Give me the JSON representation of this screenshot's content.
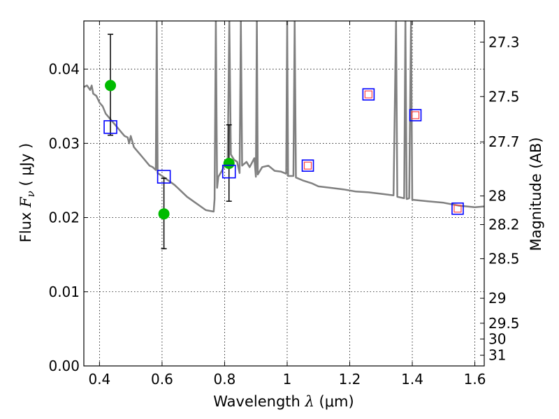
{
  "chart_data": {
    "type": "scatter",
    "xlabel": {
      "prefix": "Wavelength  ",
      "symbol": "λ",
      "units": " (μm)"
    },
    "ylabel": {
      "prefix": "Flux  ",
      "symbol": "F",
      "subscript": "ν",
      "units": "  ( μJy )"
    },
    "y2label": "Magnitude (AB)",
    "xlim": [
      0.35,
      1.63
    ],
    "ylim": [
      0.0,
      0.0465
    ],
    "grid": true,
    "x_ticks": [
      0.4,
      0.6,
      0.8,
      1.0,
      1.2,
      1.4,
      1.6
    ],
    "x_tick_labels": [
      "0.4",
      "0.6",
      "0.8",
      "1",
      "1.2",
      "1.4",
      "1.6"
    ],
    "y_ticks": [
      0.0,
      0.01,
      0.02,
      0.03,
      0.04
    ],
    "y_tick_labels": [
      "0.00",
      "0.01",
      "0.02",
      "0.03",
      "0.04"
    ],
    "y2_ticks": [
      {
        "label": "27.3",
        "value": 27.3
      },
      {
        "label": "27.5",
        "value": 27.5
      },
      {
        "label": "27.7",
        "value": 27.7
      },
      {
        "label": "28",
        "value": 28.0
      },
      {
        "label": "28.2",
        "value": 28.2
      },
      {
        "label": "28.5",
        "value": 28.5
      },
      {
        "label": "29",
        "value": 29.0
      },
      {
        "label": "29.5",
        "value": 29.5
      },
      {
        "label": "30",
        "value": 30.0
      },
      {
        "label": "31",
        "value": 31.0
      }
    ],
    "series": [
      {
        "kind": "model_sed_line",
        "color": "#808080",
        "points": [
          [
            0.35,
            0.0376
          ],
          [
            0.36,
            0.0378
          ],
          [
            0.37,
            0.0372
          ],
          [
            0.375,
            0.0378
          ],
          [
            0.38,
            0.0367
          ],
          [
            0.39,
            0.0364
          ],
          [
            0.4,
            0.0355
          ],
          [
            0.41,
            0.035
          ],
          [
            0.42,
            0.034
          ],
          [
            0.43,
            0.0335
          ],
          [
            0.44,
            0.033
          ],
          [
            0.45,
            0.0325
          ],
          [
            0.46,
            0.032
          ],
          [
            0.47,
            0.0315
          ],
          [
            0.48,
            0.031
          ],
          [
            0.49,
            0.0308
          ],
          [
            0.495,
            0.03
          ],
          [
            0.5,
            0.031
          ],
          [
            0.51,
            0.0295
          ],
          [
            0.52,
            0.029
          ],
          [
            0.53,
            0.0285
          ],
          [
            0.54,
            0.028
          ],
          [
            0.55,
            0.0275
          ],
          [
            0.56,
            0.027
          ],
          [
            0.57,
            0.0268
          ],
          [
            0.58,
            0.0264
          ],
          [
            0.583,
            0.0465
          ],
          [
            0.586,
            0.026
          ],
          [
            0.6,
            0.0256
          ],
          [
            0.62,
            0.025
          ],
          [
            0.64,
            0.0244
          ],
          [
            0.66,
            0.0236
          ],
          [
            0.68,
            0.0228
          ],
          [
            0.7,
            0.0222
          ],
          [
            0.72,
            0.0216
          ],
          [
            0.74,
            0.021
          ],
          [
            0.765,
            0.0208
          ],
          [
            0.768,
            0.0225
          ],
          [
            0.772,
            0.0465
          ],
          [
            0.776,
            0.024
          ],
          [
            0.78,
            0.0255
          ],
          [
            0.79,
            0.0262
          ],
          [
            0.8,
            0.027
          ],
          [
            0.81,
            0.028
          ],
          [
            0.815,
            0.0465
          ],
          [
            0.82,
            0.0285
          ],
          [
            0.83,
            0.0278
          ],
          [
            0.84,
            0.0275
          ],
          [
            0.848,
            0.026
          ],
          [
            0.852,
            0.0465
          ],
          [
            0.856,
            0.027
          ],
          [
            0.87,
            0.0275
          ],
          [
            0.88,
            0.0268
          ],
          [
            0.895,
            0.028
          ],
          [
            0.9,
            0.0255
          ],
          [
            0.903,
            0.0465
          ],
          [
            0.906,
            0.0258
          ],
          [
            0.92,
            0.0268
          ],
          [
            0.94,
            0.027
          ],
          [
            0.96,
            0.0263
          ],
          [
            0.98,
            0.0262
          ],
          [
            0.997,
            0.0259
          ],
          [
            1.0,
            0.0465
          ],
          [
            1.003,
            0.0256
          ],
          [
            1.02,
            0.0256
          ],
          [
            1.024,
            0.0465
          ],
          [
            1.028,
            0.0254
          ],
          [
            1.05,
            0.025
          ],
          [
            1.08,
            0.0246
          ],
          [
            1.1,
            0.0242
          ],
          [
            1.14,
            0.024
          ],
          [
            1.18,
            0.0238
          ],
          [
            1.22,
            0.0235
          ],
          [
            1.26,
            0.0234
          ],
          [
            1.3,
            0.0232
          ],
          [
            1.34,
            0.023
          ],
          [
            1.348,
            0.0465
          ],
          [
            1.352,
            0.0228
          ],
          [
            1.374,
            0.0226
          ],
          [
            1.378,
            0.0465
          ],
          [
            1.382,
            0.0225
          ],
          [
            1.39,
            0.0226
          ],
          [
            1.396,
            0.0465
          ],
          [
            1.4,
            0.0224
          ],
          [
            1.45,
            0.0222
          ],
          [
            1.5,
            0.022
          ],
          [
            1.55,
            0.0216
          ],
          [
            1.6,
            0.0214
          ],
          [
            1.63,
            0.0215
          ]
        ]
      },
      {
        "kind": "observed_points",
        "color": "#00bb00",
        "marker": "circle",
        "points": [
          {
            "x": 0.435,
            "y": 0.0378,
            "yerr_low": 0.0311,
            "yerr_high": 0.0447
          },
          {
            "x": 0.606,
            "y": 0.0205,
            "yerr_low": 0.0158,
            "yerr_high": 0.0253
          },
          {
            "x": 0.814,
            "y": 0.0273,
            "yerr_low": 0.0222,
            "yerr_high": 0.0325
          }
        ]
      },
      {
        "kind": "model_bandpass_points",
        "color": "#0000ff",
        "marker": "open_square",
        "points": [
          {
            "x": 0.435,
            "y": 0.0322
          },
          {
            "x": 0.606,
            "y": 0.0255
          },
          {
            "x": 0.814,
            "y": 0.0262
          }
        ]
      },
      {
        "kind": "model_bandpass_points_nir",
        "color": "#0000ff",
        "inner_color": "#ff4040",
        "marker": "double_square",
        "points": [
          {
            "x": 1.066,
            "y": 0.027
          },
          {
            "x": 1.26,
            "y": 0.0366
          },
          {
            "x": 1.41,
            "y": 0.0338
          },
          {
            "x": 1.545,
            "y": 0.0212
          }
        ]
      }
    ]
  }
}
